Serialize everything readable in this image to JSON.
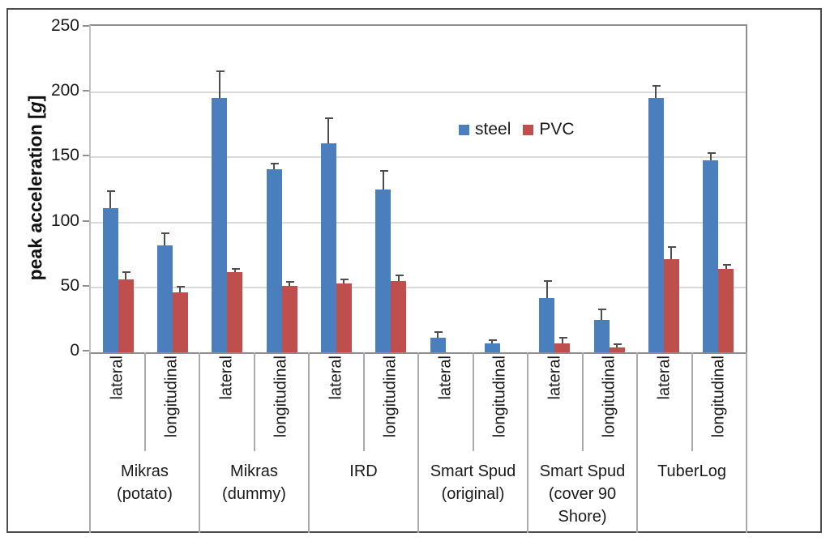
{
  "chart_data": {
    "type": "bar",
    "title": "",
    "ylabel": "peak acceleration [g]",
    "ylabel_parts": {
      "prefix": "peak acceleration [",
      "italic": "g",
      "suffix": "]"
    },
    "ylim": [
      0,
      250
    ],
    "yticks": [
      0,
      50,
      100,
      150,
      200,
      250
    ],
    "grid": true,
    "legend_position": "inside-plot-upper-middle",
    "error_bars": "upper only",
    "groups": [
      {
        "label_lines": [
          "Mikras",
          "(potato)"
        ]
      },
      {
        "label_lines": [
          "Mikras",
          "(dummy)"
        ]
      },
      {
        "label_lines": [
          "IRD"
        ]
      },
      {
        "label_lines": [
          "Smart Spud",
          "(original)"
        ]
      },
      {
        "label_lines": [
          "Smart Spud",
          "(cover 90",
          "Shore)"
        ]
      },
      {
        "label_lines": [
          "TuberLog"
        ]
      }
    ],
    "sub_categories": [
      "lateral",
      "longitudinal"
    ],
    "categories": [
      "Mikras (potato) lateral",
      "Mikras (potato) longitudinal",
      "Mikras (dummy) lateral",
      "Mikras (dummy) longitudinal",
      "IRD lateral",
      "IRD longitudinal",
      "Smart Spud (original) lateral",
      "Smart Spud (original) longitudinal",
      "Smart Spud (cover 90 Shore) lateral",
      "Smart Spud (cover 90 Shore) longitudinal",
      "TuberLog lateral",
      "TuberLog longitudinal"
    ],
    "series": [
      {
        "name": "steel",
        "color": "#4A7EBC",
        "values": [
          111,
          82,
          196,
          141,
          161,
          125,
          11,
          7,
          42,
          25,
          196,
          148
        ],
        "errors": [
          14,
          10,
          21,
          5,
          20,
          15,
          5,
          3,
          14,
          9,
          10,
          6
        ]
      },
      {
        "name": "PVC",
        "color": "#BF4F4C",
        "values": [
          56,
          46,
          62,
          51,
          53,
          55,
          0,
          0,
          7,
          4,
          72,
          64
        ],
        "errors": [
          6,
          5,
          3,
          4,
          4,
          5,
          0,
          0,
          5,
          3,
          10,
          4
        ]
      }
    ]
  },
  "style": {
    "gridline_color": "#d9d9d9",
    "axis_color": "#8e8e8e",
    "error_bar_color": "#4d4d4d",
    "frame_color": "#4d4d4d"
  }
}
